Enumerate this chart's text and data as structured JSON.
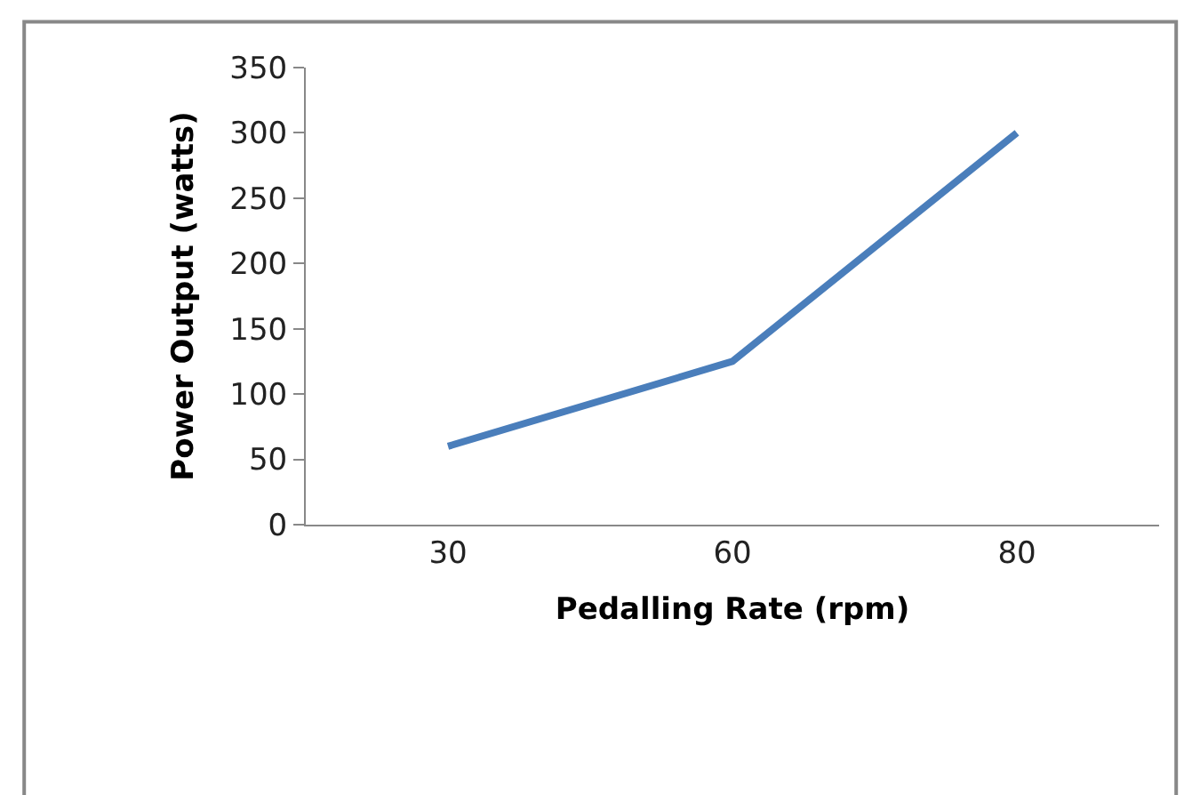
{
  "chart_data": {
    "type": "line",
    "xlabel": "Pedalling Rate (rpm)",
    "ylabel": "Power Output (watts)",
    "categories": [
      "30",
      "60",
      "80"
    ],
    "series": [
      {
        "color": "#4a7ebb",
        "values": [
          60,
          125,
          300
        ]
      }
    ],
    "ylim": [
      0,
      350
    ],
    "yticks": [
      0,
      50,
      100,
      150,
      200,
      250,
      300,
      350
    ],
    "marker": "none",
    "line_style": "solid"
  }
}
